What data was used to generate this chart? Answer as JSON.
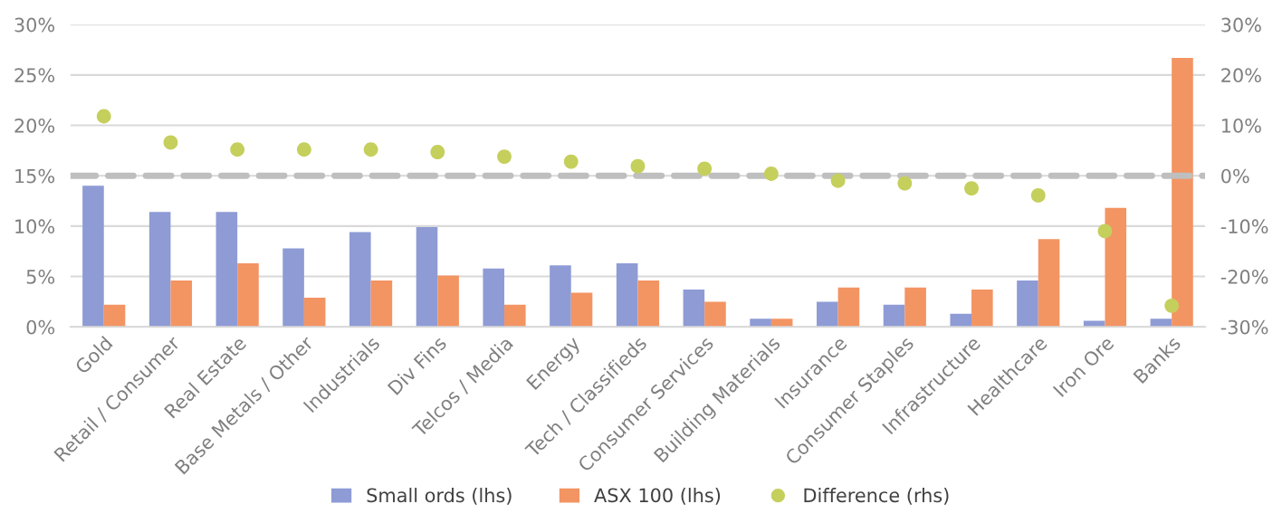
{
  "chart_data": {
    "type": "bar",
    "categories": [
      "Gold",
      "Retail / Consumer",
      "Real Estate",
      "Base Metals / Other",
      "Industrials",
      "Div Fins",
      "Telcos / Media",
      "Energy",
      "Tech / Classifieds",
      "Consumer Services",
      "Building Materials",
      "Insurance",
      "Consumer Staples",
      "Infrastructure",
      "Healthcare",
      "Iron Ore",
      "Banks"
    ],
    "series": [
      {
        "name": "Small ords (lhs)",
        "color": "#8e9bd5",
        "values": [
          14.0,
          11.4,
          11.4,
          7.8,
          9.4,
          9.9,
          5.8,
          6.1,
          6.3,
          3.7,
          0.8,
          2.5,
          2.2,
          1.3,
          4.6,
          0.6,
          0.8
        ]
      },
      {
        "name": "ASX 100 (lhs)",
        "color": "#f39463",
        "values": [
          2.2,
          4.6,
          6.3,
          2.9,
          4.6,
          5.1,
          2.2,
          3.4,
          4.6,
          2.5,
          0.8,
          3.9,
          3.9,
          3.7,
          8.7,
          11.8,
          26.7
        ]
      },
      {
        "name": "Difference (rhs)",
        "type": "scatter",
        "axis": "y2",
        "color": "#c5cf5c",
        "marker": "circle",
        "values": [
          11.8,
          6.6,
          5.2,
          5.2,
          5.2,
          4.7,
          3.8,
          2.8,
          1.9,
          1.4,
          0.4,
          -1.0,
          -1.5,
          -2.5,
          -3.9,
          -11.0,
          -25.8
        ]
      }
    ],
    "ylim": [
      0,
      30
    ],
    "yticks": [
      {
        "value": 0,
        "label": "0%"
      },
      {
        "value": 5,
        "label": "5%"
      },
      {
        "value": 10,
        "label": "10%"
      },
      {
        "value": 15,
        "label": "15%"
      },
      {
        "value": 20,
        "label": "20%"
      },
      {
        "value": 25,
        "label": "25%"
      },
      {
        "value": 30,
        "label": "30%"
      }
    ],
    "y2lim": [
      -30,
      30
    ],
    "y2ticks": [
      {
        "value": -30,
        "label": "-30%"
      },
      {
        "value": -20,
        "label": "-20%"
      },
      {
        "value": -10,
        "label": "-10%"
      },
      {
        "value": 0,
        "label": "0%"
      },
      {
        "value": 10,
        "label": "10%"
      },
      {
        "value": 20,
        "label": "20%"
      },
      {
        "value": 30,
        "label": "30%"
      }
    ],
    "ref_lines": [
      {
        "axis": "y2",
        "value": 0,
        "color": "#bfbfbf",
        "line_style": "dashed"
      }
    ],
    "grid": "y",
    "legend": "bottom"
  }
}
